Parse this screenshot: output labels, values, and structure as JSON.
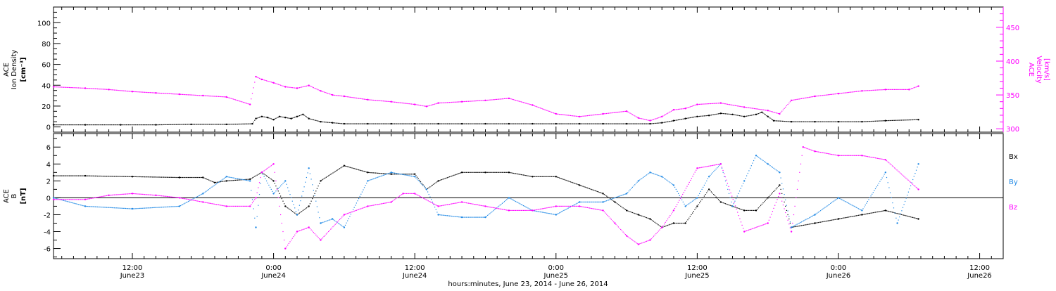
{
  "colors": {
    "black": "#000000",
    "blue": "#1e88e5",
    "magenta": "#ff00ff"
  },
  "footer": {
    "caption": "hours:minutes, June 23, 2014 - June 26, 2014"
  },
  "x_ticks": [
    {
      "t": 12,
      "time": "12:00",
      "date": "June23"
    },
    {
      "t": 24,
      "time": "0:00",
      "date": "June24"
    },
    {
      "t": 36,
      "time": "12:00",
      "date": "June24"
    },
    {
      "t": 48,
      "time": "0:00",
      "date": "June25"
    },
    {
      "t": 60,
      "time": "12:00",
      "date": "June25"
    },
    {
      "t": 72,
      "time": "0:00",
      "date": "June26"
    },
    {
      "t": 84,
      "time": "12:00",
      "date": "June26"
    }
  ],
  "chart_data": [
    {
      "type": "scatter",
      "x_unit": "hours since 00:00 June 23, 2014",
      "xlim": [
        5.3,
        86
      ],
      "ylabel_left": [
        "ACE",
        "Ion Density",
        "[cm⁻³]"
      ],
      "ylabel_right": [
        "ACE",
        "Velocity",
        "[km/s]"
      ],
      "ylim_left": [
        -5,
        115
      ],
      "ylim_right": [
        295,
        480
      ],
      "yticks_left": [
        0,
        20,
        40,
        60,
        80,
        100
      ],
      "yticks_right": [
        300,
        350,
        400,
        450
      ],
      "series": [
        {
          "name": "Ion Density",
          "axis": "left",
          "color": "black",
          "x": [
            5.3,
            8,
            11,
            14,
            17,
            20,
            22.2,
            22.5,
            23,
            23.5,
            24,
            24.5,
            25,
            25.5,
            26,
            26.5,
            27,
            28,
            29,
            30,
            32,
            34,
            36,
            38,
            40,
            42,
            44,
            46,
            48,
            50,
            52,
            54,
            56,
            57,
            58,
            59,
            60,
            61,
            62,
            63,
            64,
            65,
            65.5,
            66,
            66.5,
            68,
            70,
            72,
            74,
            76,
            78.8
          ],
          "y": [
            2,
            2,
            2,
            2,
            2.5,
            2.5,
            3,
            8,
            10,
            9,
            7,
            10,
            9,
            8,
            10,
            12,
            8,
            5,
            4,
            3,
            3,
            3,
            3,
            3,
            3,
            3,
            3,
            3,
            3,
            3,
            3,
            3,
            3,
            4,
            6,
            8,
            10,
            11,
            13,
            12,
            10,
            12,
            14,
            10,
            6,
            5,
            5,
            5,
            5,
            6,
            7
          ]
        },
        {
          "name": "Velocity",
          "axis": "right",
          "color": "magenta",
          "x": [
            5.3,
            8,
            10,
            12,
            14,
            16,
            18,
            20,
            22,
            22.5,
            23,
            24,
            25,
            26,
            27,
            28,
            29,
            30,
            32,
            34,
            36,
            37,
            38,
            40,
            42,
            44,
            46,
            48,
            50,
            52,
            54,
            55,
            56,
            57,
            58,
            59,
            60,
            62,
            64,
            66,
            67,
            68,
            70,
            72,
            74,
            76,
            78,
            78.8
          ],
          "y": [
            362,
            360,
            358,
            355,
            353,
            351,
            349,
            347,
            336,
            377,
            373,
            368,
            362,
            360,
            364,
            356,
            350,
            348,
            343,
            340,
            336,
            333,
            338,
            340,
            342,
            345,
            335,
            322,
            318,
            322,
            326,
            316,
            312,
            318,
            328,
            330,
            336,
            338,
            332,
            327,
            322,
            342,
            348,
            352,
            356,
            358,
            358,
            363
          ]
        }
      ]
    },
    {
      "type": "scatter",
      "x_unit": "hours since 00:00 June 23, 2014",
      "xlim": [
        5.3,
        86
      ],
      "ylabel_left": [
        "ACE",
        "B",
        "[nT]"
      ],
      "ylim_left": [
        -7.2,
        7.6
      ],
      "yticks_left": [
        -6,
        -4,
        -2,
        0,
        2,
        4,
        6
      ],
      "zero_line": true,
      "legend_position": "right",
      "series": [
        {
          "name": "Bx",
          "color": "black",
          "x": [
            5.3,
            8,
            12,
            16,
            18,
            19,
            20,
            22,
            23,
            24,
            25,
            26,
            27,
            28,
            30,
            32,
            34,
            36,
            37,
            38,
            40,
            42,
            44,
            46,
            48,
            50,
            52,
            53,
            54,
            55,
            56,
            57,
            58,
            59,
            60,
            61,
            62,
            63,
            64,
            65,
            66,
            67,
            68,
            70,
            72,
            74,
            76,
            78.8
          ],
          "y": [
            2.6,
            2.6,
            2.5,
            2.4,
            2.4,
            1.8,
            2.0,
            2.2,
            3.0,
            2.0,
            -1.0,
            -2.0,
            -1.0,
            2.0,
            3.8,
            3.0,
            2.8,
            2.8,
            1.0,
            2.0,
            3.0,
            3.0,
            3.0,
            2.5,
            2.5,
            1.5,
            0.5,
            -0.5,
            -1.5,
            -2.0,
            -2.5,
            -3.5,
            -3.0,
            -3.0,
            -1.0,
            1.0,
            -0.5,
            -1.0,
            -1.5,
            -1.5,
            0.0,
            1.5,
            -3.5,
            -3.0,
            -2.5,
            -2.0,
            -1.5,
            -2.5
          ]
        },
        {
          "name": "By",
          "color": "blue",
          "x": [
            5.3,
            8,
            12,
            16,
            18,
            20,
            22,
            22.5,
            23,
            24,
            25,
            26,
            27,
            28,
            29,
            30,
            32,
            34,
            36,
            37,
            38,
            40,
            42,
            44,
            46,
            48,
            50,
            52,
            54,
            55,
            56,
            57,
            58,
            59,
            60,
            61,
            62,
            63,
            64,
            65,
            66,
            67,
            68,
            70,
            72,
            74,
            76,
            77,
            78.8
          ],
          "y": [
            0.0,
            -1.0,
            -1.3,
            -1.0,
            0.5,
            2.5,
            2.0,
            -3.5,
            3.0,
            0.5,
            2.0,
            -2.0,
            3.5,
            -3.0,
            -2.5,
            -3.5,
            2.0,
            3.0,
            2.5,
            1.0,
            -2.0,
            -2.3,
            -2.3,
            0.0,
            -1.5,
            -2.0,
            -0.5,
            -0.5,
            0.5,
            2.0,
            3.0,
            2.5,
            1.5,
            -1.0,
            0.0,
            2.5,
            4.0,
            -1.0,
            2.0,
            5.0,
            4.0,
            3.0,
            -3.5,
            -2.0,
            0.0,
            -1.5,
            3.0,
            -3.0,
            4.0
          ]
        },
        {
          "name": "Bz",
          "color": "magenta",
          "x": [
            5.3,
            8,
            10,
            12,
            14,
            16,
            18,
            20,
            22,
            22.5,
            23,
            24,
            25,
            26,
            27,
            28,
            30,
            32,
            34,
            35,
            36,
            38,
            40,
            42,
            44,
            46,
            48,
            50,
            52,
            53,
            54,
            55,
            56,
            57,
            58,
            60,
            62,
            64,
            66,
            67,
            68,
            69,
            70,
            72,
            74,
            76,
            78.8
          ],
          "y": [
            -0.2,
            -0.2,
            0.3,
            0.5,
            0.3,
            0.0,
            -0.5,
            -1.0,
            -1.0,
            0.0,
            3.0,
            4.0,
            -6.0,
            -4.0,
            -3.5,
            -5.0,
            -2.0,
            -1.0,
            -0.5,
            0.5,
            0.5,
            -1.0,
            -0.5,
            -1.0,
            -1.5,
            -1.5,
            -1.0,
            -1.0,
            -1.5,
            -3.0,
            -4.5,
            -5.5,
            -5.0,
            -3.5,
            -1.5,
            3.5,
            4.0,
            -4.0,
            -3.0,
            0.5,
            -4.0,
            6.0,
            5.5,
            5.0,
            5.0,
            4.5,
            1.0
          ]
        }
      ]
    }
  ]
}
